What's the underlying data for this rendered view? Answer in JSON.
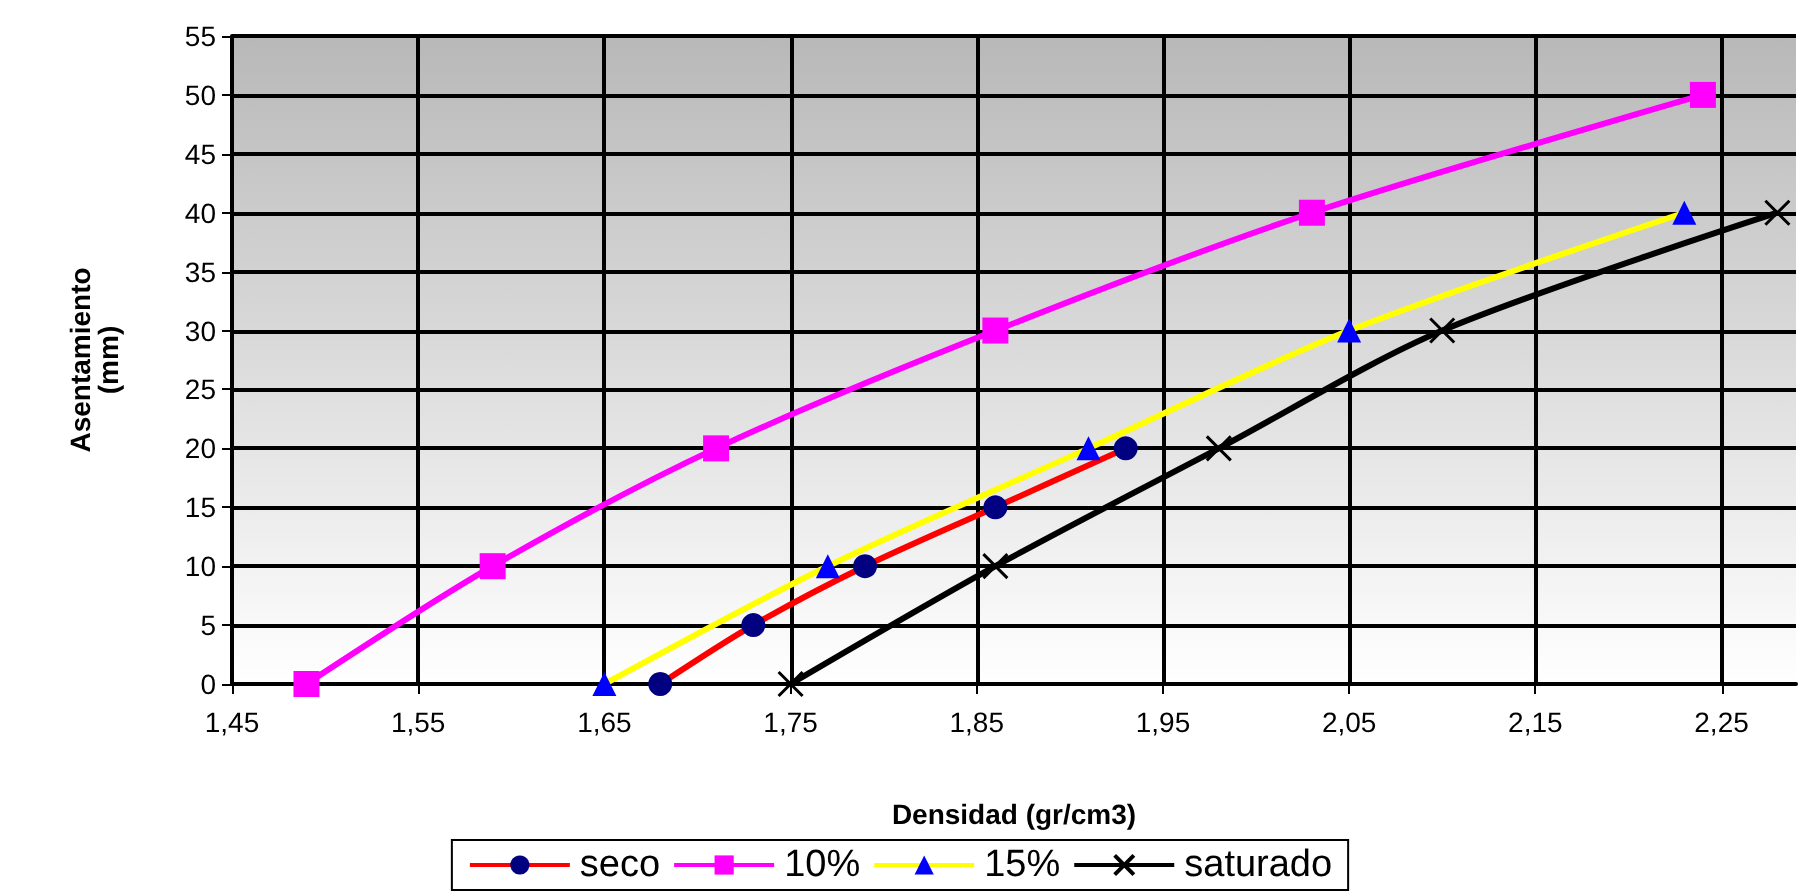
{
  "chart_data": {
    "type": "line",
    "xlabel": "Densidad (gr/cm3)",
    "ylabel": "Asentamiento\n(mm)",
    "xlim": [
      1.45,
      2.29
    ],
    "xticks": [
      {
        "value": 1.45,
        "label": "1,45"
      },
      {
        "value": 1.55,
        "label": "1,55"
      },
      {
        "value": 1.65,
        "label": "1,65"
      },
      {
        "value": 1.75,
        "label": "1,75"
      },
      {
        "value": 1.85,
        "label": "1,85"
      },
      {
        "value": 1.95,
        "label": "1,95"
      },
      {
        "value": 2.05,
        "label": "2,05"
      },
      {
        "value": 2.15,
        "label": "2,15"
      },
      {
        "value": 2.25,
        "label": "2,25"
      }
    ],
    "ylim": [
      0,
      55
    ],
    "yticks": [
      0,
      5,
      10,
      15,
      20,
      25,
      30,
      35,
      40,
      45,
      50,
      55
    ],
    "grid": true,
    "legend": "bottom",
    "series": [
      {
        "name": "seco",
        "color": "#ff0000",
        "marker": "circle",
        "x": [
          1.68,
          1.73,
          1.79,
          1.86,
          1.93
        ],
        "values": [
          0,
          5,
          10,
          15,
          20
        ]
      },
      {
        "name": "10%",
        "color": "#ff00ff",
        "marker": "square",
        "x": [
          1.49,
          1.59,
          1.71,
          1.86,
          2.03,
          2.24
        ],
        "values": [
          0,
          10,
          20,
          30,
          40,
          50
        ]
      },
      {
        "name": "15%",
        "color": "#ffff00",
        "marker": "triangle",
        "x": [
          1.65,
          1.77,
          1.91,
          2.05,
          2.23
        ],
        "values": [
          0,
          10,
          20,
          30,
          40
        ]
      },
      {
        "name": "saturado",
        "color": "#000000",
        "marker": "cross",
        "x": [
          1.75,
          1.86,
          1.98,
          2.1,
          2.28
        ],
        "values": [
          0,
          10,
          20,
          30,
          40
        ]
      }
    ]
  }
}
